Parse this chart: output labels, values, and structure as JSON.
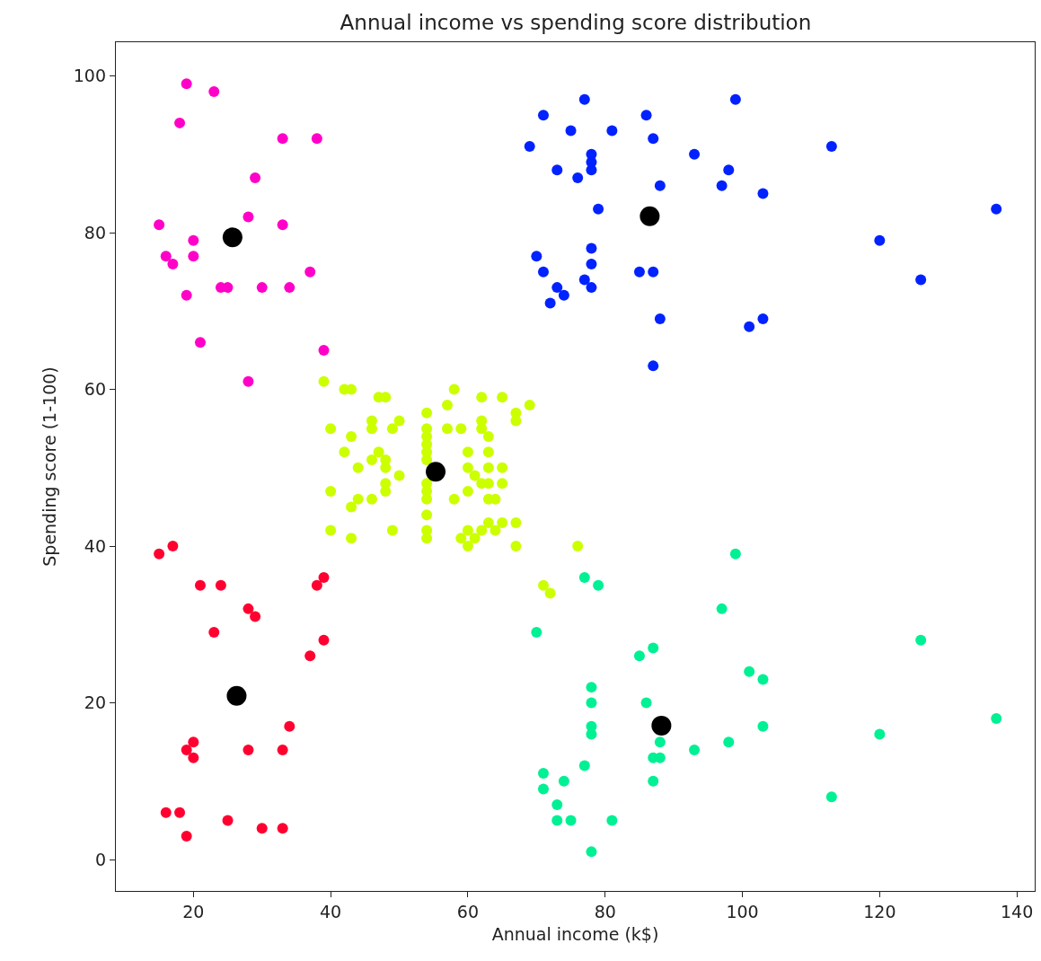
{
  "chart_data": {
    "type": "scatter",
    "title": "Annual income vs spending score distribution",
    "xlabel": "Annual income (k$)",
    "ylabel": "Spending score (1-100)",
    "xlim": [
      8.7,
      142.6
    ],
    "ylim": [
      -4,
      104.3
    ],
    "xticks": [
      20,
      40,
      60,
      80,
      100,
      120,
      140
    ],
    "yticks": [
      0,
      20,
      40,
      60,
      80,
      100
    ],
    "grid": false,
    "marker": "circle",
    "series": [
      {
        "color": "#ff00c8",
        "x": [
          19,
          23,
          18,
          33,
          38,
          29,
          15,
          20,
          28,
          33,
          16,
          20,
          17,
          24,
          25,
          30,
          34,
          37,
          19,
          21,
          39,
          28
        ],
        "values": [
          99,
          98,
          94,
          92,
          92,
          87,
          81,
          79,
          82,
          81,
          77,
          77,
          76,
          73,
          73,
          73,
          73,
          75,
          72,
          66,
          65,
          61
        ]
      },
      {
        "color": "#0022ff",
        "x": [
          77,
          99,
          71,
          86,
          75,
          81,
          87,
          69,
          113,
          93,
          78,
          78,
          78,
          73,
          98,
          76,
          88,
          97,
          103,
          79,
          137,
          120,
          70,
          78,
          71,
          78,
          85,
          87,
          126,
          73,
          77,
          78,
          74,
          72,
          88,
          103,
          101,
          87
        ],
        "values": [
          97,
          97,
          95,
          95,
          93,
          93,
          92,
          91,
          91,
          90,
          90,
          89,
          88,
          88,
          88,
          87,
          86,
          86,
          85,
          83,
          83,
          79,
          77,
          78,
          75,
          76,
          75,
          75,
          74,
          73,
          74,
          73,
          72,
          71,
          69,
          69,
          68,
          63
        ]
      },
      {
        "color": "#ccff00",
        "x": [
          39,
          42,
          43,
          47,
          48,
          40,
          43,
          42,
          46,
          46,
          50,
          49,
          47,
          48,
          46,
          48,
          44,
          50,
          48,
          48,
          40,
          44,
          43,
          46,
          40,
          43,
          49,
          54,
          54,
          54,
          54,
          54,
          54,
          54,
          54,
          54,
          54,
          54,
          54,
          58,
          57,
          62,
          65,
          69,
          67,
          67,
          57,
          59,
          62,
          62,
          63,
          60,
          63,
          60,
          63,
          65,
          61,
          62,
          63,
          65,
          60,
          58,
          63,
          64,
          59,
          60,
          60,
          61,
          62,
          63,
          64,
          65,
          67,
          67,
          71,
          72,
          76
        ],
        "values": [
          61,
          60,
          60,
          59,
          59,
          55,
          54,
          52,
          56,
          55,
          56,
          55,
          52,
          51,
          51,
          50,
          50,
          49,
          48,
          47,
          47,
          46,
          45,
          46,
          42,
          41,
          42,
          57,
          55,
          54,
          53,
          52,
          51,
          48,
          47,
          46,
          44,
          42,
          41,
          60,
          58,
          59,
          59,
          58,
          57,
          56,
          55,
          55,
          56,
          55,
          54,
          52,
          52,
          50,
          50,
          50,
          49,
          48,
          48,
          48,
          47,
          46,
          46,
          46,
          41,
          42,
          40,
          41,
          42,
          43,
          42,
          43,
          43,
          40,
          35,
          34,
          40
        ]
      },
      {
        "color": "#ff0030",
        "x": [
          15,
          17,
          21,
          24,
          28,
          29,
          23,
          39,
          38,
          39,
          37,
          34,
          20,
          19,
          20,
          28,
          33,
          16,
          18,
          19,
          25,
          30,
          33
        ],
        "values": [
          39,
          40,
          35,
          35,
          32,
          31,
          29,
          36,
          35,
          28,
          26,
          17,
          15,
          14,
          13,
          14,
          14,
          6,
          6,
          3,
          5,
          4,
          4
        ]
      },
      {
        "color": "#00f094",
        "x": [
          99,
          77,
          79,
          97,
          70,
          126,
          87,
          85,
          101,
          103,
          78,
          78,
          86,
          137,
          78,
          78,
          103,
          120,
          88,
          98,
          93,
          87,
          88,
          77,
          71,
          71,
          74,
          87,
          113,
          73,
          73,
          75,
          81,
          78
        ],
        "values": [
          39,
          36,
          35,
          32,
          29,
          28,
          27,
          26,
          24,
          23,
          22,
          20,
          20,
          18,
          17,
          16,
          17,
          16,
          15,
          15,
          14,
          13,
          13,
          12,
          11,
          9,
          10,
          10,
          8,
          7,
          5,
          5,
          5,
          1
        ]
      },
      {
        "type": "bubble",
        "color": "#000000",
        "x": [
          25.7,
          86.5,
          55.3,
          26.3,
          88.2
        ],
        "values": [
          79.4,
          82.1,
          49.5,
          20.9,
          17.1
        ],
        "sizes": [
          1,
          1,
          1,
          1,
          1
        ]
      }
    ]
  }
}
